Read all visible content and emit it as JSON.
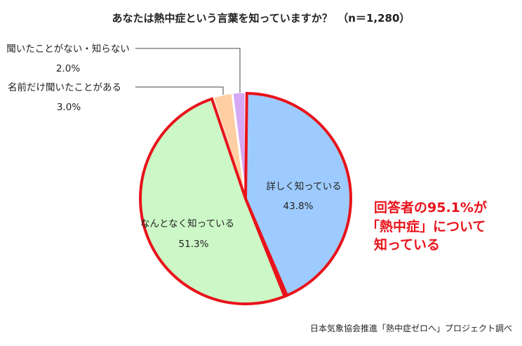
{
  "chart_data": {
    "type": "pie",
    "title": "あなたは熱中症という言葉を知っていますか？　（n＝1,280）",
    "slices": [
      {
        "label": "詳しく知っている",
        "value": 43.8,
        "value_label": "43.8%",
        "color": "#9ecbff",
        "highlighted": true
      },
      {
        "label": "なんとなく知っている",
        "value": 51.3,
        "value_label": "51.3%",
        "color": "#ccf7c6",
        "highlighted": true
      },
      {
        "label": "名前だけ聞いたことがある",
        "value": 3.0,
        "value_label": "3.0%",
        "color": "#ffcfa3",
        "highlighted": false
      },
      {
        "label": "聞いたことがない・知らない",
        "value": 2.0,
        "value_label": "2.0%",
        "color": "#d5a9f5",
        "highlighted": false
      }
    ],
    "start_angle": "12 o'clock",
    "direction": "clockwise",
    "highlight_color": "#e8131b"
  },
  "callout": {
    "lines": [
      "回答者の95.1%が",
      "「熱中症」について",
      "知っている"
    ],
    "color": "#e8131b"
  },
  "source": "日本気象協会推進「熱中症ゼロへ」プロジェクト調べ"
}
